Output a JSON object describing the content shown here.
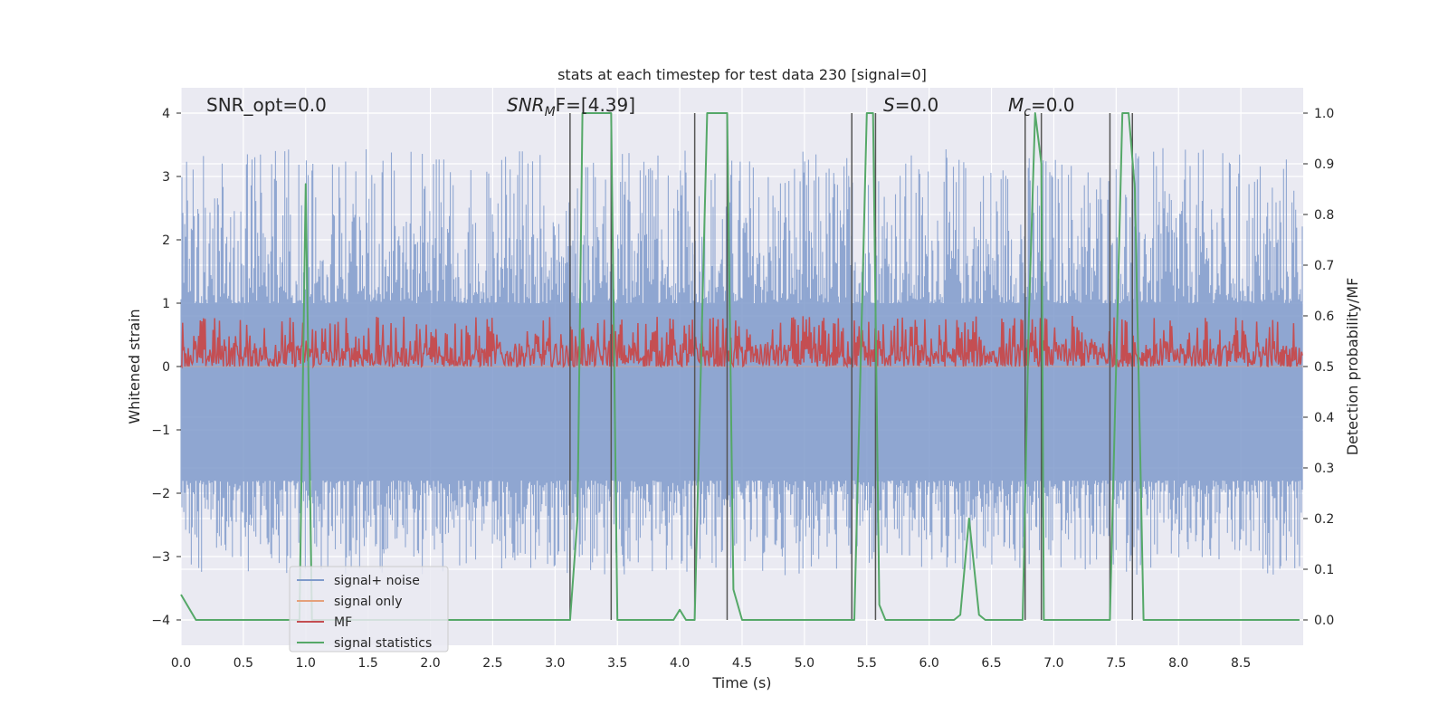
{
  "chart_data": {
    "type": "line",
    "title": "stats at each timestep for test data 230 [signal=0]",
    "xlabel": "Time (s)",
    "ylabel": "Whitened strain",
    "y2label": "Detection probability/MF",
    "xlim": [
      0,
      9
    ],
    "ylim": [
      -4.4,
      4.4
    ],
    "y2lim": [
      -0.05,
      1.05
    ],
    "xticks": [
      "0.0",
      "0.5",
      "1.0",
      "1.5",
      "2.0",
      "2.5",
      "3.0",
      "3.5",
      "4.0",
      "4.5",
      "5.0",
      "5.5",
      "6.0",
      "6.5",
      "7.0",
      "7.5",
      "8.0",
      "8.5"
    ],
    "yticks": [
      "4",
      "3",
      "2",
      "1",
      "0",
      "−1",
      "−2",
      "−3",
      "−4"
    ],
    "y2ticks": [
      "1.0",
      "0.9",
      "0.8",
      "0.7",
      "0.6",
      "0.5",
      "0.4",
      "0.3",
      "0.2",
      "0.1",
      "0.0"
    ],
    "annotations": {
      "snr_opt": "SNR_opt=0.0",
      "snr_mf_base": "SNR",
      "snr_mf_sub": "M",
      "snr_mf_rest": "F=[4.39]",
      "s_label": "S",
      "s_rest": "=0.0",
      "mc_base": "M",
      "mc_sub": "c",
      "mc_rest": "=0.0"
    },
    "legend": {
      "placement": "lower-left",
      "entries": [
        "signal+ noise",
        "signal only",
        "MF",
        "signal statistics"
      ]
    },
    "colors": {
      "signal_noise": "#7f9acb",
      "signal_only": "#e5a07b",
      "mf": "#c44e52",
      "signal_statistics": "#55a868",
      "boundary": "#555555",
      "background": "#eaeaf2",
      "grid": "#ffffff"
    },
    "series": [
      {
        "name": "signal statistics",
        "axis": "right",
        "x": [
          0.0,
          0.12,
          0.9,
          0.95,
          1.0,
          1.05,
          1.1,
          3.12,
          3.18,
          3.22,
          3.45,
          3.5,
          3.95,
          4.0,
          4.05,
          4.12,
          4.17,
          4.22,
          4.38,
          4.43,
          4.5,
          5.4,
          5.45,
          5.5,
          5.55,
          5.6,
          5.65,
          6.2,
          6.25,
          6.32,
          6.4,
          6.45,
          6.75,
          6.8,
          6.85,
          6.9,
          6.92,
          7.0,
          7.45,
          7.5,
          7.55,
          7.6,
          7.65,
          7.72,
          7.78,
          8.92,
          8.97
        ],
        "y": [
          0.05,
          0.0,
          0.0,
          0.0,
          0.86,
          0.0,
          0.0,
          0.0,
          0.2,
          1.0,
          1.0,
          0.0,
          0.0,
          0.02,
          0.0,
          0.0,
          0.5,
          1.0,
          1.0,
          0.06,
          0.0,
          0.0,
          0.5,
          1.0,
          1.0,
          0.03,
          0.0,
          0.0,
          0.01,
          0.2,
          0.01,
          0.0,
          0.0,
          0.6,
          1.0,
          0.9,
          0.0,
          0.0,
          0.0,
          0.5,
          1.0,
          1.0,
          0.85,
          0.0,
          0.0,
          0.0,
          0.0
        ]
      },
      {
        "name": "detection boundaries",
        "axis": "right",
        "x": [
          3.12,
          3.45,
          4.12,
          4.38,
          5.38,
          5.57,
          6.77,
          6.9,
          7.45,
          7.63
        ],
        "y": [
          1.0,
          1.0,
          1.0,
          1.0,
          1.0,
          1.0,
          1.0,
          1.0,
          1.0,
          1.0
        ]
      },
      {
        "name": "signal+ noise",
        "axis": "left",
        "x_range": [
          0,
          9
        ],
        "band_positive": [
          1.0,
          3.45
        ],
        "band_negative": [
          -1.8,
          -3.3
        ]
      },
      {
        "name": "MF",
        "axis": "right",
        "x_range": [
          0,
          9
        ],
        "band": [
          0.5,
          0.6
        ]
      },
      {
        "name": "signal only",
        "axis": "left",
        "values": "flat at 0"
      }
    ]
  }
}
